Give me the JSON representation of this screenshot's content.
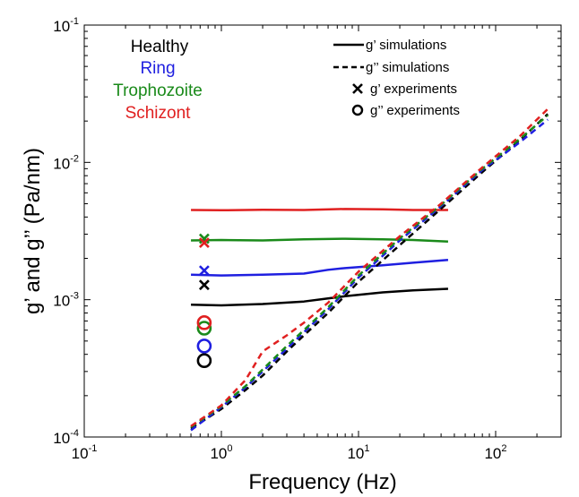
{
  "chart_data": {
    "type": "line",
    "xlabel": "Frequency (Hz)",
    "ylabel": "g’ and g’’ (Pa/nm)",
    "xscale": "log",
    "yscale": "log",
    "xlim": [
      0.1,
      300
    ],
    "ylim": [
      0.0001,
      0.1
    ],
    "x_ticks": [
      {
        "base": "10",
        "exp": "-1",
        "value": 0.1
      },
      {
        "base": "10",
        "exp": "0",
        "value": 1
      },
      {
        "base": "10",
        "exp": "1",
        "value": 10
      },
      {
        "base": "10",
        "exp": "2",
        "value": 100
      }
    ],
    "y_ticks": [
      {
        "base": "10",
        "exp": "-4",
        "value": 0.0001
      },
      {
        "base": "10",
        "exp": "-3",
        "value": 0.001
      },
      {
        "base": "10",
        "exp": "-2",
        "value": 0.01
      },
      {
        "base": "10",
        "exp": "-1",
        "value": 0.1
      }
    ],
    "grid": false,
    "conditions": [
      {
        "name": "Healthy",
        "color": "#000000"
      },
      {
        "name": "Ring",
        "color": "#1f1fe0"
      },
      {
        "name": "Trophozoite",
        "color": "#1a8a1a"
      },
      {
        "name": "Schizont",
        "color": "#e02020"
      }
    ],
    "style_legend": [
      {
        "marker": "line-solid",
        "label": "g’ simulations"
      },
      {
        "marker": "line-dashed",
        "label": "g’’ simulations"
      },
      {
        "marker": "x",
        "label": "g’ experiments"
      },
      {
        "marker": "o",
        "label": "g’’ experiments"
      }
    ],
    "g_prime_simulations": [
      {
        "condition": "Healthy",
        "x": [
          0.6,
          1.0,
          2.0,
          4.0,
          8.0,
          15.0,
          25.0,
          45.0
        ],
        "y": [
          0.00092,
          0.00091,
          0.00093,
          0.00097,
          0.00106,
          0.00113,
          0.00117,
          0.0012
        ]
      },
      {
        "condition": "Ring",
        "x": [
          0.6,
          1.0,
          2.0,
          4.0,
          6.0,
          8.0,
          15.0,
          25.0,
          45.0
        ],
        "y": [
          0.00152,
          0.0015,
          0.00152,
          0.00155,
          0.00165,
          0.0017,
          0.00178,
          0.00186,
          0.00195
        ]
      },
      {
        "condition": "Trophozoite",
        "x": [
          0.6,
          1.0,
          2.0,
          4.0,
          8.0,
          15.0,
          25.0,
          45.0
        ],
        "y": [
          0.0027,
          0.00272,
          0.0027,
          0.00275,
          0.00278,
          0.00275,
          0.00272,
          0.00265
        ]
      },
      {
        "condition": "Schizont",
        "x": [
          0.6,
          1.0,
          2.0,
          4.0,
          8.0,
          15.0,
          25.0,
          45.0
        ],
        "y": [
          0.0045,
          0.00448,
          0.00452,
          0.0045,
          0.00458,
          0.00455,
          0.0045,
          0.0045
        ]
      }
    ],
    "g_double_prime_simulations": [
      {
        "condition": "Healthy",
        "x": [
          0.6,
          1.0,
          1.5,
          2.0,
          3.0,
          4.0,
          6.0,
          10.0,
          20.0,
          40.0,
          80.0,
          150.0,
          240.0
        ],
        "y": [
          0.000115,
          0.00016,
          0.00022,
          0.00028,
          0.00042,
          0.00055,
          0.0008,
          0.00135,
          0.0025,
          0.0046,
          0.0085,
          0.0145,
          0.0225
        ]
      },
      {
        "condition": "Ring",
        "x": [
          0.6,
          1.0,
          1.5,
          2.0,
          3.0,
          4.0,
          6.0,
          10.0,
          20.0,
          40.0,
          80.0,
          150.0,
          240.0
        ],
        "y": [
          0.000112,
          0.000165,
          0.00023,
          0.0003,
          0.00044,
          0.00058,
          0.00085,
          0.00145,
          0.0027,
          0.0048,
          0.0088,
          0.014,
          0.0205
        ]
      },
      {
        "condition": "Trophozoite",
        "x": [
          0.6,
          1.0,
          1.5,
          2.0,
          3.0,
          4.0,
          6.0,
          10.0,
          20.0,
          40.0,
          80.0,
          150.0,
          240.0
        ],
        "y": [
          0.000118,
          0.000168,
          0.000235,
          0.00031,
          0.00046,
          0.0006,
          0.00088,
          0.0015,
          0.0028,
          0.0049,
          0.009,
          0.0148,
          0.022
        ]
      },
      {
        "condition": "Schizont",
        "x": [
          0.6,
          1.0,
          1.5,
          2.0,
          3.0,
          4.0,
          6.0,
          10.0,
          20.0,
          40.0,
          80.0,
          150.0,
          240.0
        ],
        "y": [
          0.00012,
          0.00017,
          0.00026,
          0.00042,
          0.00055,
          0.00068,
          0.00095,
          0.0016,
          0.0029,
          0.005,
          0.0092,
          0.0155,
          0.0245
        ]
      }
    ],
    "g_prime_experiments": [
      {
        "condition": "Healthy",
        "x": 0.75,
        "y": 0.00128
      },
      {
        "condition": "Ring",
        "x": 0.75,
        "y": 0.00163
      },
      {
        "condition": "Trophozoite",
        "x": 0.75,
        "y": 0.00278
      },
      {
        "condition": "Schizont",
        "x": 0.75,
        "y": 0.0026
      }
    ],
    "g_double_prime_experiments": [
      {
        "condition": "Healthy",
        "x": 0.75,
        "y": 0.00036
      },
      {
        "condition": "Ring",
        "x": 0.75,
        "y": 0.00046
      },
      {
        "condition": "Trophozoite",
        "x": 0.75,
        "y": 0.00062
      },
      {
        "condition": "Schizont",
        "x": 0.75,
        "y": 0.00068
      }
    ]
  }
}
